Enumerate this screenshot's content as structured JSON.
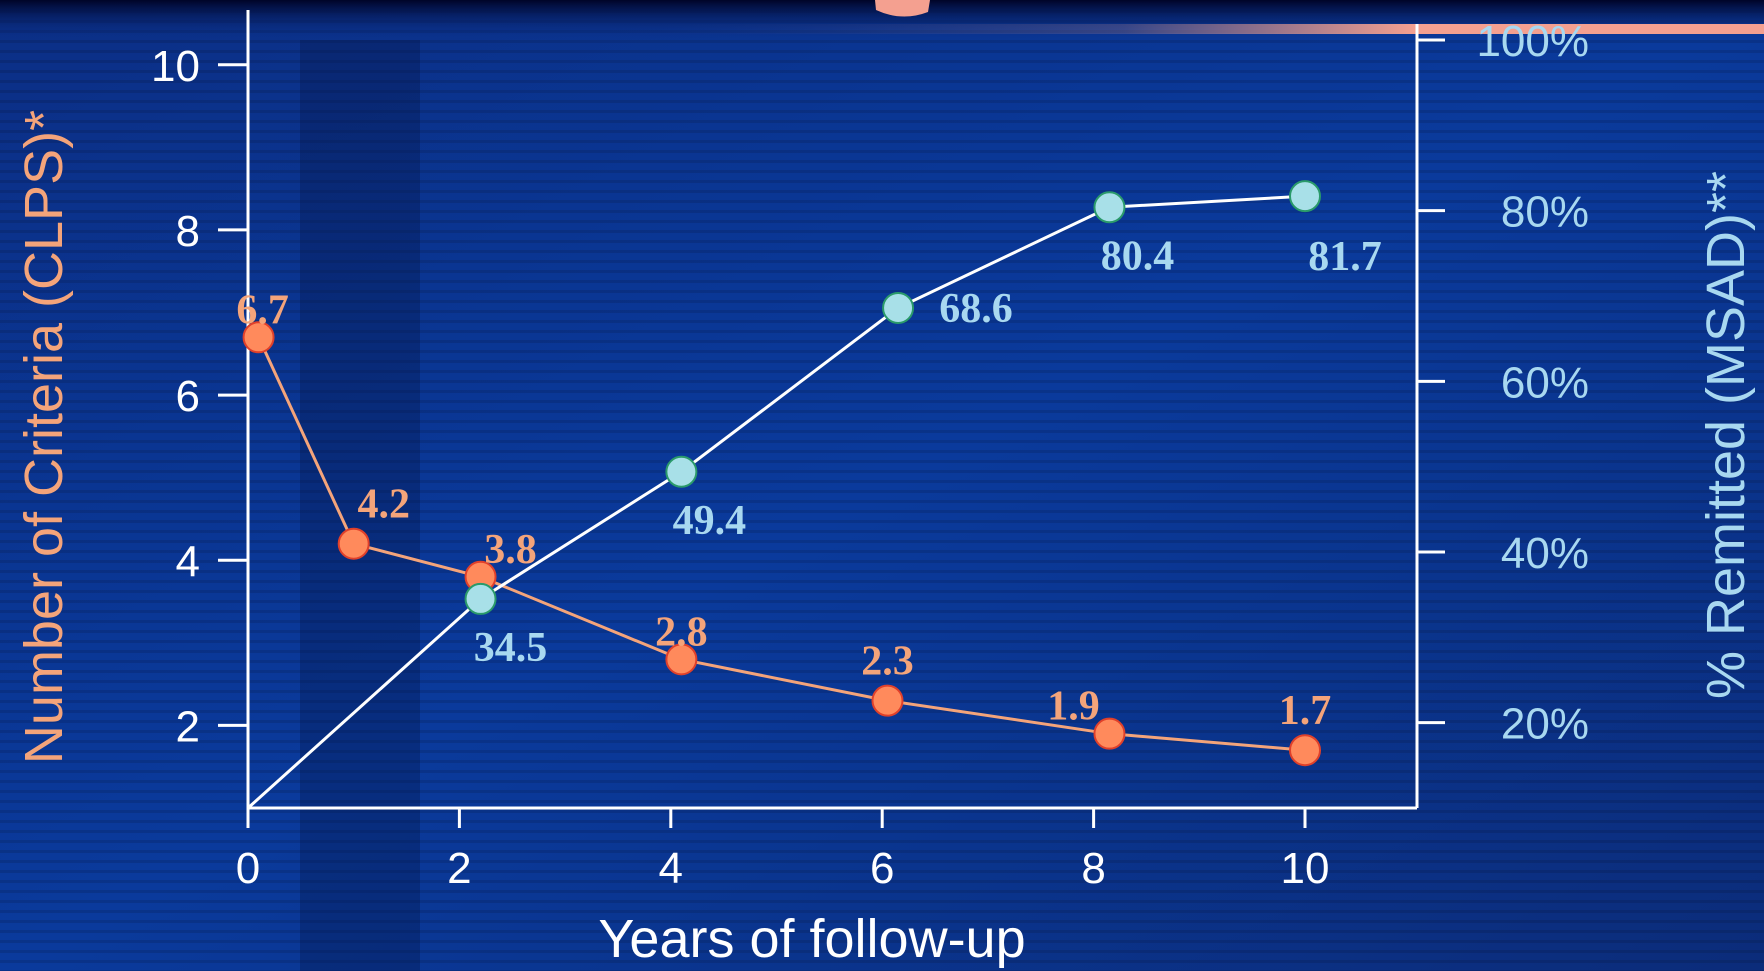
{
  "slide": {
    "accent_color": "#f0a080",
    "background_color": "#0a2f8a"
  },
  "chart_data": {
    "type": "line",
    "xlabel": "Years of follow-up",
    "ylabel_left": "Number of Criteria (CLPS)*",
    "ylabel_right": "% Remitted (MSAD)**",
    "x_ticks": [
      "0",
      "2",
      "4",
      "6",
      "8",
      "10"
    ],
    "y_left_ticks": [
      "2",
      "4",
      "6",
      "8",
      "10"
    ],
    "y_right_ticks": [
      "20%",
      "40%",
      "60%",
      "80%",
      "100%"
    ],
    "xlim": [
      0,
      10.7
    ],
    "ylim_left": [
      1,
      10.3
    ],
    "ylim_right": [
      10,
      100
    ],
    "grid": false,
    "series": [
      {
        "axis": "left",
        "color": "#f4a47a",
        "marker_color": "#ff8a5c",
        "line_start_at_origin": false,
        "x": [
          0.1,
          1.0,
          2.2,
          4.1,
          6.05,
          8.15,
          10.0
        ],
        "values": [
          6.7,
          4.2,
          3.8,
          2.8,
          2.3,
          1.9,
          1.7
        ],
        "labels": [
          "6.7",
          "4.2",
          "3.8",
          "2.8",
          "2.3",
          "1.9",
          "1.7"
        ]
      },
      {
        "axis": "right",
        "color": "#ffffff",
        "marker_color": "#a8e0e8",
        "label_color": "#a8d8f0",
        "line_start": [
          0.0,
          10.0
        ],
        "x": [
          2.2,
          4.1,
          6.15,
          8.15,
          10.0
        ],
        "values": [
          34.5,
          49.4,
          68.6,
          80.4,
          81.7
        ],
        "labels": [
          "34.5",
          "49.4",
          "68.6",
          "80.4",
          "81.7"
        ]
      }
    ]
  }
}
